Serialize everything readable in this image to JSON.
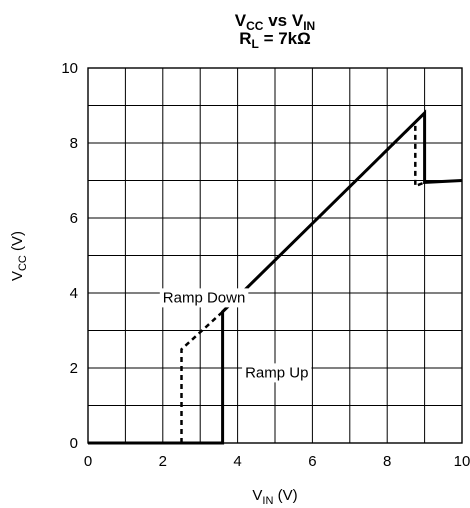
{
  "chart_data": {
    "type": "line",
    "title": {
      "line1": {
        "main1": "V",
        "sub1": "CC",
        "mid": " vs V",
        "sub2": "IN"
      },
      "line2": {
        "main": "R",
        "sub": "L",
        "rest": " = 7kΩ"
      }
    },
    "xlabel": {
      "main": "V",
      "sub": "IN",
      "rest": " (V)"
    },
    "ylabel": {
      "main": "V",
      "sub": "CC",
      "rest": " (V)"
    },
    "xlim": [
      0,
      10
    ],
    "ylim": [
      0,
      10
    ],
    "x_ticks": [
      "0",
      "2",
      "4",
      "6",
      "8",
      "10"
    ],
    "y_ticks": [
      "0",
      "2",
      "4",
      "6",
      "8",
      "10"
    ],
    "grid": true,
    "series": [
      {
        "name": "Ramp Up",
        "style": "solid",
        "points": [
          [
            0,
            0
          ],
          [
            3.6,
            0
          ],
          [
            3.6,
            3.5
          ],
          [
            9.0,
            8.8
          ],
          [
            9.0,
            6.95
          ],
          [
            10,
            7.0
          ]
        ]
      },
      {
        "name": "Ramp Down",
        "style": "dashed",
        "points": [
          [
            2.5,
            0
          ],
          [
            2.5,
            2.5
          ],
          [
            3.6,
            3.5
          ],
          [
            8.75,
            8.55
          ],
          [
            8.75,
            6.85
          ],
          [
            9.0,
            6.95
          ]
        ]
      }
    ],
    "annotations": [
      {
        "text": "Ramp Down",
        "x": 2.0,
        "y": 3.75
      },
      {
        "text": "Ramp Up",
        "x": 4.2,
        "y": 1.75
      }
    ]
  }
}
